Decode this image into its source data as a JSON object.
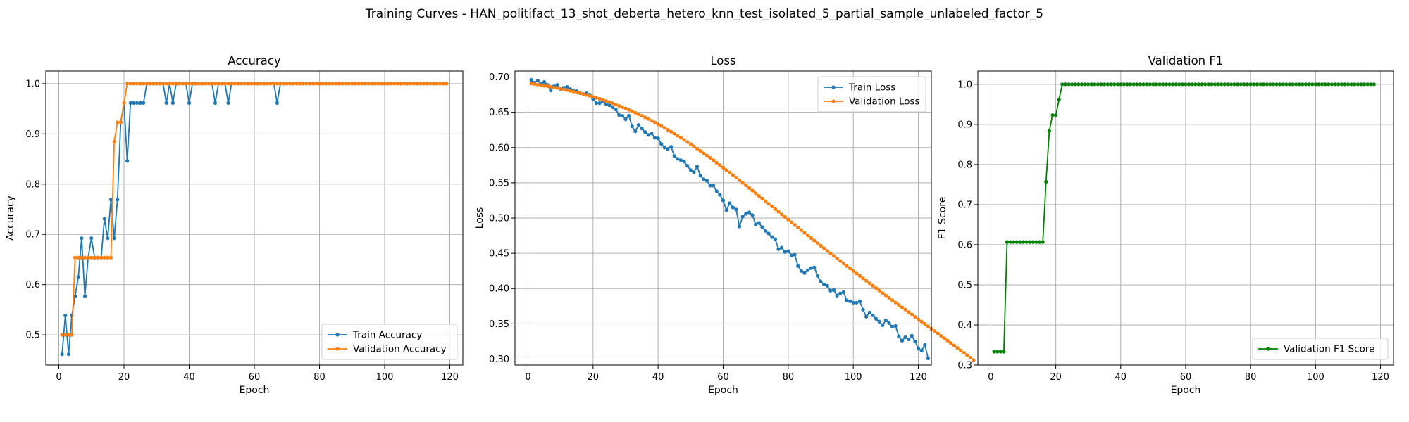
{
  "figure": {
    "suptitle": "Training Curves - HAN_politifact_13_shot_deberta_hetero_knn_test_isolated_5_partial_sample_unlabeled_factor_5"
  },
  "chart_data": [
    {
      "type": "line",
      "title": "Accuracy",
      "xlabel": "Epoch",
      "ylabel": "Accuracy",
      "xlim": [
        -4,
        124
      ],
      "ylim": [
        0.44,
        1.025
      ],
      "xticks": [
        0,
        20,
        40,
        60,
        80,
        100,
        120
      ],
      "yticks": [
        0.5,
        0.6,
        0.7,
        0.8,
        0.9,
        1.0
      ],
      "ytick_labels": [
        "0.5",
        "0.6",
        "0.7",
        "0.8",
        "0.9",
        "1.0"
      ],
      "grid": true,
      "legend_position": "lower-right",
      "series": [
        {
          "name": "Train Accuracy",
          "color": "#1f77b4",
          "x_start": 1,
          "values": [
            0.4615,
            0.5385,
            0.4615,
            0.5385,
            0.5769,
            0.6154,
            0.6923,
            0.5769,
            0.6538,
            0.6923,
            0.6538,
            0.6538,
            0.6538,
            0.7308,
            0.6923,
            0.7692,
            0.6923,
            0.7692,
            0.9231,
            0.9615,
            0.8462,
            0.9615,
            0.9615,
            0.9615,
            0.9615,
            0.9615,
            1.0,
            1.0,
            1.0,
            1.0,
            1.0,
            1.0,
            0.9615,
            1.0,
            0.9615,
            1.0,
            1.0,
            1.0,
            1.0,
            0.9615,
            1.0,
            1.0,
            1.0,
            1.0,
            1.0,
            1.0,
            1.0,
            0.9615,
            1.0,
            1.0,
            1.0,
            0.9615,
            1.0,
            1.0,
            1.0,
            1.0,
            1.0,
            1.0,
            1.0,
            1.0,
            1.0,
            1.0,
            1.0,
            1.0,
            1.0,
            1.0,
            0.9615,
            1.0,
            1.0,
            1.0,
            1.0,
            1.0,
            1.0,
            1.0,
            1.0,
            1.0,
            1.0,
            1.0,
            1.0,
            1.0,
            1.0,
            1.0,
            1.0,
            1.0,
            1.0,
            1.0,
            1.0,
            1.0,
            1.0,
            1.0,
            1.0,
            1.0,
            1.0,
            1.0,
            1.0,
            1.0,
            1.0,
            1.0,
            1.0,
            1.0,
            1.0,
            1.0,
            1.0,
            1.0,
            1.0,
            1.0,
            1.0,
            1.0,
            1.0,
            1.0,
            1.0,
            1.0,
            1.0,
            1.0,
            1.0,
            1.0,
            1.0,
            1.0,
            1.0
          ]
        },
        {
          "name": "Validation Accuracy",
          "color": "#ff7f0e",
          "x_start": 1,
          "values": [
            0.5,
            0.5,
            0.5,
            0.5,
            0.6538,
            0.6538,
            0.6538,
            0.6538,
            0.6538,
            0.6538,
            0.6538,
            0.6538,
            0.6538,
            0.6538,
            0.6538,
            0.6538,
            0.8846,
            0.9231,
            0.9231,
            0.9615,
            1.0,
            1.0,
            1.0,
            1.0,
            1.0,
            1.0,
            1.0,
            1.0,
            1.0,
            1.0,
            1.0,
            1.0,
            1.0,
            1.0,
            1.0,
            1.0,
            1.0,
            1.0,
            1.0,
            1.0,
            1.0,
            1.0,
            1.0,
            1.0,
            1.0,
            1.0,
            1.0,
            1.0,
            1.0,
            1.0,
            1.0,
            1.0,
            1.0,
            1.0,
            1.0,
            1.0,
            1.0,
            1.0,
            1.0,
            1.0,
            1.0,
            1.0,
            1.0,
            1.0,
            1.0,
            1.0,
            1.0,
            1.0,
            1.0,
            1.0,
            1.0,
            1.0,
            1.0,
            1.0,
            1.0,
            1.0,
            1.0,
            1.0,
            1.0,
            1.0,
            1.0,
            1.0,
            1.0,
            1.0,
            1.0,
            1.0,
            1.0,
            1.0,
            1.0,
            1.0,
            1.0,
            1.0,
            1.0,
            1.0,
            1.0,
            1.0,
            1.0,
            1.0,
            1.0,
            1.0,
            1.0,
            1.0,
            1.0,
            1.0,
            1.0,
            1.0,
            1.0,
            1.0,
            1.0,
            1.0,
            1.0,
            1.0,
            1.0,
            1.0,
            1.0,
            1.0,
            1.0,
            1.0,
            1.0
          ]
        }
      ]
    },
    {
      "type": "line",
      "title": "Loss",
      "xlabel": "Epoch",
      "ylabel": "Loss",
      "xlim": [
        -4,
        124
      ],
      "ylim": [
        0.2915,
        0.7085
      ],
      "xticks": [
        0,
        20,
        40,
        60,
        80,
        100,
        120
      ],
      "yticks": [
        0.3,
        0.35,
        0.4,
        0.45,
        0.5,
        0.55,
        0.6,
        0.65,
        0.7
      ],
      "ytick_labels": [
        "0.30",
        "0.35",
        "0.40",
        "0.45",
        "0.50",
        "0.55",
        "0.60",
        "0.65",
        "0.70"
      ],
      "grid": true,
      "legend_position": "upper-right",
      "series": [
        {
          "name": "Train Loss",
          "color": "#1f77b4",
          "x_start": 1,
          "values": [
            0.696,
            0.692,
            0.695,
            0.69,
            0.693,
            0.689,
            0.681,
            0.687,
            0.689,
            0.683,
            0.685,
            0.686,
            0.683,
            0.681,
            0.68,
            0.678,
            0.676,
            0.677,
            0.675,
            0.669,
            0.663,
            0.663,
            0.666,
            0.662,
            0.66,
            0.657,
            0.654,
            0.646,
            0.645,
            0.64,
            0.645,
            0.63,
            0.623,
            0.632,
            0.627,
            0.622,
            0.618,
            0.62,
            0.614,
            0.613,
            0.605,
            0.6,
            0.598,
            0.601,
            0.588,
            0.584,
            0.582,
            0.58,
            0.574,
            0.568,
            0.565,
            0.573,
            0.56,
            0.555,
            0.553,
            0.546,
            0.546,
            0.538,
            0.533,
            0.525,
            0.511,
            0.521,
            0.515,
            0.512,
            0.488,
            0.502,
            0.506,
            0.508,
            0.504,
            0.491,
            0.493,
            0.487,
            0.482,
            0.478,
            0.473,
            0.47,
            0.456,
            0.458,
            0.452,
            0.453,
            0.447,
            0.448,
            0.432,
            0.425,
            0.422,
            0.426,
            0.429,
            0.43,
            0.418,
            0.41,
            0.406,
            0.404,
            0.397,
            0.398,
            0.39,
            0.393,
            0.395,
            0.383,
            0.382,
            0.38,
            0.38,
            0.382,
            0.37,
            0.36,
            0.366,
            0.362,
            0.357,
            0.353,
            0.348,
            0.355,
            0.351,
            0.346,
            0.347,
            0.332,
            0.326,
            0.331,
            0.328,
            0.333,
            0.325,
            0.315,
            0.312,
            0.32,
            0.301
          ]
        },
        {
          "name": "Validation Loss",
          "color": "#ff7f0e",
          "x_start": 1,
          "values": [
            0.6908,
            0.6901,
            0.6893,
            0.6886,
            0.6878,
            0.687,
            0.6861,
            0.6853,
            0.6844,
            0.6835,
            0.6825,
            0.6815,
            0.6804,
            0.6794,
            0.6782,
            0.6771,
            0.6758,
            0.6746,
            0.6733,
            0.6719,
            0.6705,
            0.6691,
            0.6676,
            0.666,
            0.6644,
            0.6627,
            0.661,
            0.6592,
            0.6574,
            0.6555,
            0.6535,
            0.6515,
            0.6494,
            0.6473,
            0.6451,
            0.6428,
            0.6405,
            0.6381,
            0.6356,
            0.6331,
            0.6305,
            0.6279,
            0.6252,
            0.6225,
            0.6197,
            0.6168,
            0.6139,
            0.6109,
            0.6079,
            0.6048,
            0.6017,
            0.5985,
            0.5953,
            0.592,
            0.5887,
            0.5854,
            0.582,
            0.5785,
            0.5751,
            0.5716,
            0.568,
            0.5645,
            0.5609,
            0.5573,
            0.5536,
            0.55,
            0.5463,
            0.5426,
            0.5389,
            0.5351,
            0.5314,
            0.5277,
            0.5239,
            0.5202,
            0.5165,
            0.5127,
            0.509,
            0.5052,
            0.5015,
            0.4978,
            0.494,
            0.4903,
            0.4866,
            0.4829,
            0.4792,
            0.4755,
            0.4718,
            0.4681,
            0.4644,
            0.4608,
            0.4571,
            0.4535,
            0.4499,
            0.4463,
            0.4427,
            0.4391,
            0.4355,
            0.432,
            0.4284,
            0.4249,
            0.4214,
            0.4179,
            0.4144,
            0.4109,
            0.4075,
            0.404,
            0.4006,
            0.3971,
            0.3937,
            0.3903,
            0.3869,
            0.3835,
            0.3801,
            0.3767,
            0.3733,
            0.37,
            0.3666,
            0.3632,
            0.3599,
            0.3565,
            0.3531,
            0.3498,
            0.3464,
            0.343,
            0.3397,
            0.3363,
            0.3329,
            0.3295,
            0.3261,
            0.3227,
            0.3193,
            0.3159,
            0.3124,
            0.309,
            0.3055,
            0.302,
            0.2985
          ]
        }
      ]
    },
    {
      "type": "line",
      "title": "Validation F1",
      "xlabel": "Epoch",
      "ylabel": "F1 Score",
      "xlim": [
        -4,
        124
      ],
      "ylim": [
        0.3,
        1.033
      ],
      "xticks": [
        0,
        20,
        40,
        60,
        80,
        100,
        120
      ],
      "yticks": [
        0.3,
        0.4,
        0.5,
        0.6,
        0.7,
        0.8,
        0.9,
        1.0
      ],
      "ytick_labels": [
        "0.3",
        "0.4",
        "0.5",
        "0.6",
        "0.7",
        "0.8",
        "0.9",
        "1.0"
      ],
      "grid": true,
      "legend_position": "lower-right",
      "series": [
        {
          "name": "Validation F1 Score",
          "color": "#008000",
          "x_start": 1,
          "values": [
            0.3333,
            0.3333,
            0.3333,
            0.3333,
            0.6066,
            0.6066,
            0.6066,
            0.6066,
            0.6066,
            0.6066,
            0.6066,
            0.6066,
            0.6066,
            0.6066,
            0.6066,
            0.6066,
            0.7568,
            0.8836,
            0.9231,
            0.9231,
            0.9615,
            1.0,
            1.0,
            1.0,
            1.0,
            1.0,
            1.0,
            1.0,
            1.0,
            1.0,
            1.0,
            1.0,
            1.0,
            1.0,
            1.0,
            1.0,
            1.0,
            1.0,
            1.0,
            1.0,
            1.0,
            1.0,
            1.0,
            1.0,
            1.0,
            1.0,
            1.0,
            1.0,
            1.0,
            1.0,
            1.0,
            1.0,
            1.0,
            1.0,
            1.0,
            1.0,
            1.0,
            1.0,
            1.0,
            1.0,
            1.0,
            1.0,
            1.0,
            1.0,
            1.0,
            1.0,
            1.0,
            1.0,
            1.0,
            1.0,
            1.0,
            1.0,
            1.0,
            1.0,
            1.0,
            1.0,
            1.0,
            1.0,
            1.0,
            1.0,
            1.0,
            1.0,
            1.0,
            1.0,
            1.0,
            1.0,
            1.0,
            1.0,
            1.0,
            1.0,
            1.0,
            1.0,
            1.0,
            1.0,
            1.0,
            1.0,
            1.0,
            1.0,
            1.0,
            1.0,
            1.0,
            1.0,
            1.0,
            1.0,
            1.0,
            1.0,
            1.0,
            1.0,
            1.0,
            1.0,
            1.0,
            1.0,
            1.0,
            1.0,
            1.0,
            1.0,
            1.0,
            1.0
          ]
        }
      ]
    }
  ]
}
